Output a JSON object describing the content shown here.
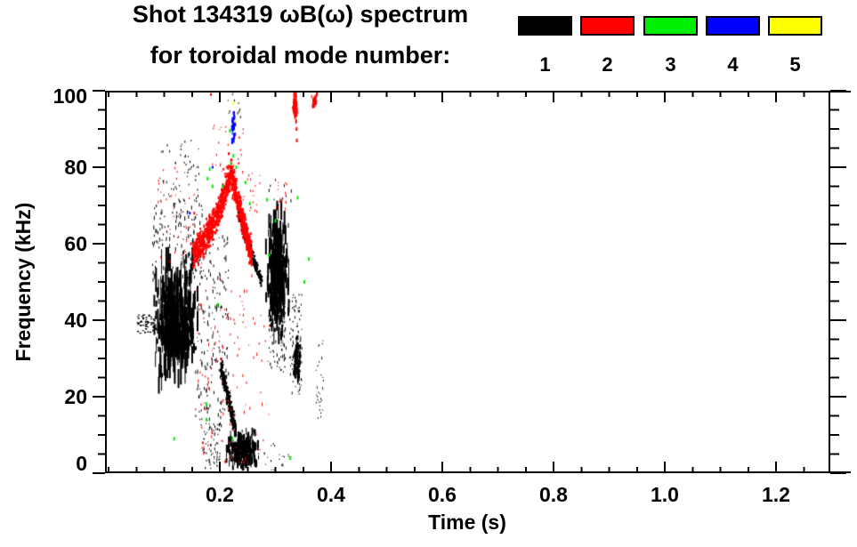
{
  "header": {
    "title_line1": "Shot 134319 ωB(ω) spectrum",
    "title_line2": "for toroidal mode number:"
  },
  "legend": {
    "entries": [
      {
        "label": "1",
        "color": "#000000"
      },
      {
        "label": "2",
        "color": "#ff0000"
      },
      {
        "label": "3",
        "color": "#00ee00"
      },
      {
        "label": "4",
        "color": "#0000ff"
      },
      {
        "label": "5",
        "color": "#ffff00"
      }
    ]
  },
  "axes": {
    "x": {
      "title": "Time (s)",
      "major_ticks": [
        0.2,
        0.4,
        0.6,
        0.8,
        1.0,
        1.2
      ],
      "major_labels": [
        "0.2",
        "0.4",
        "0.6",
        "0.8",
        "1.0",
        "1.2"
      ],
      "minor_step": 0.05
    },
    "y": {
      "title": "Frequency (kHz)",
      "major_ticks": [
        0,
        20,
        40,
        60,
        80,
        100
      ],
      "major_labels": [
        "0",
        "20",
        "40",
        "60",
        "80",
        "100"
      ],
      "minor_step": 5
    }
  },
  "chart_data": {
    "type": "scatter",
    "title": "Shot 134319 ωB(ω) spectrum for toroidal mode number",
    "xlabel": "Time (s)",
    "ylabel": "Frequency (kHz)",
    "xlim": [
      -0.0064,
      1.2976
    ],
    "ylim": [
      0,
      100
    ],
    "grid": false,
    "legend_position": "top-right",
    "background": "#ffffff",
    "axis_color": "#000000",
    "render_seed": 1234567,
    "series": [
      {
        "name": "n=1",
        "color": "#000000",
        "clusters": [
          {
            "k": "v",
            "t": [
              0.077,
              0.16
            ],
            "f": [
              23,
              56
            ],
            "n": 420,
            "l": [
              4,
              30
            ]
          },
          {
            "k": "s",
            "t": [
              0.048,
              0.085
            ],
            "f": [
              36.5,
              41.5
            ],
            "n": 55,
            "d": [
              2,
              2
            ]
          },
          {
            "k": "s",
            "t": [
              0.078,
              0.168
            ],
            "f": [
              50,
              72
            ],
            "n": 160,
            "d": [
              1,
              5
            ]
          },
          {
            "k": "s",
            "t": [
              0.09,
              0.165
            ],
            "f": [
              70,
              88
            ],
            "n": 40,
            "d": [
              1,
              3
            ]
          },
          {
            "k": "s",
            "t": [
              0.128,
              0.162
            ],
            "f": [
              72,
              87
            ],
            "n": 14,
            "d": [
              1,
              3
            ]
          },
          {
            "k": "s",
            "t": [
              0.155,
              0.215
            ],
            "f": [
              12,
              62
            ],
            "n": 180,
            "d": [
              1,
              5
            ]
          },
          {
            "k": "r",
            "p": [
              [
                0.202,
                28
              ],
              [
                0.211,
                22
              ],
              [
                0.221,
                16
              ],
              [
                0.229,
                11
              ]
            ],
            "s": 2.0,
            "n": 260,
            "d": [
              2,
              3
            ]
          },
          {
            "k": "v",
            "t": [
              0.212,
              0.27
            ],
            "f": [
              0.5,
              11
            ],
            "n": 330,
            "l": [
              3,
              10
            ]
          },
          {
            "k": "s",
            "t": [
              0.168,
              0.2
            ],
            "f": [
              1,
              13
            ],
            "n": 70,
            "d": [
              1,
              3
            ]
          },
          {
            "k": "r",
            "p": [
              [
                0.233,
                68
              ],
              [
                0.247,
                62
              ],
              [
                0.261,
                56
              ],
              [
                0.276,
                50
              ]
            ],
            "s": 1.5,
            "n": 220,
            "d": [
              2,
              3
            ]
          },
          {
            "k": "v",
            "t": [
              0.283,
              0.324
            ],
            "f": [
              36,
              70
            ],
            "n": 330,
            "l": [
              4,
              24
            ]
          },
          {
            "k": "s",
            "t": [
              0.286,
              0.32
            ],
            "f": [
              26,
              44
            ],
            "n": 80,
            "d": [
              1,
              4
            ]
          },
          {
            "k": "s",
            "t": [
              0.325,
              0.347
            ],
            "f": [
              20,
              47
            ],
            "n": 80,
            "d": [
              1,
              3
            ]
          },
          {
            "k": "v",
            "t": [
              0.332,
              0.346
            ],
            "f": [
              24,
              36
            ],
            "n": 80,
            "l": [
              3,
              9
            ]
          },
          {
            "k": "s",
            "t": [
              0.372,
              0.386
            ],
            "f": [
              14,
              35
            ],
            "n": 32,
            "d": [
              1,
              2
            ]
          },
          {
            "k": "s",
            "t": [
              0.205,
              0.24
            ],
            "f": [
              93,
              100
            ],
            "n": 14,
            "d": [
              1,
              3
            ]
          },
          {
            "k": "s",
            "t": [
              0.26,
              0.33
            ],
            "f": [
              0,
              8
            ],
            "n": 24,
            "d": [
              1,
              2
            ]
          },
          {
            "k": "s",
            "t": [
              0.285,
              0.335
            ],
            "f": [
              71,
              77
            ],
            "n": 10,
            "d": [
              1,
              4
            ]
          }
        ]
      },
      {
        "name": "n=2",
        "color": "#ff0000",
        "clusters": [
          {
            "k": "r",
            "p": [
              [
                0.152,
                57
              ],
              [
                0.168,
                60
              ],
              [
                0.184,
                64
              ],
              [
                0.2,
                69
              ],
              [
                0.212,
                75
              ],
              [
                0.22,
                78
              ],
              [
                0.229,
                73
              ],
              [
                0.239,
                67
              ],
              [
                0.25,
                61
              ],
              [
                0.258,
                57
              ]
            ],
            "s": 3.0,
            "n": 950,
            "d": [
              2,
              4
            ]
          },
          {
            "k": "s",
            "t": [
              0.185,
              0.245
            ],
            "f": [
              78,
              92
            ],
            "n": 32,
            "d": [
              1,
              3
            ]
          },
          {
            "k": "s",
            "t": [
              0.088,
              0.155
            ],
            "f": [
              55,
              80
            ],
            "n": 38,
            "d": [
              1,
              3
            ]
          },
          {
            "k": "s",
            "t": [
              0.155,
              0.29
            ],
            "f": [
              2,
              52
            ],
            "n": 110,
            "d": [
              1,
              4
            ]
          },
          {
            "k": "v",
            "t": [
              0.3305,
              0.3395
            ],
            "f": [
              92,
              100
            ],
            "n": 45,
            "l": [
              3,
              8
            ]
          },
          {
            "k": "p",
            "p": [
              [
                0.338,
                90
              ],
              [
                0.3385,
                87
              ]
            ],
            "d": [
              2,
              4
            ]
          },
          {
            "k": "v",
            "t": [
              0.365,
              0.376
            ],
            "f": [
              95,
              100
            ],
            "n": 26,
            "l": [
              2,
              6
            ]
          },
          {
            "k": "s",
            "t": [
              0.298,
              0.32
            ],
            "f": [
              69,
              76
            ],
            "n": 16,
            "d": [
              1,
              3
            ]
          },
          {
            "k": "s",
            "t": [
              0.24,
              0.272
            ],
            "f": [
              68,
              80
            ],
            "n": 20,
            "d": [
              1,
              3
            ]
          },
          {
            "k": "p",
            "p": [
              [
                0.184,
                99
              ],
              [
                0.154,
                68
              ],
              [
                0.148,
                60
              ],
              [
                0.21,
                3
              ],
              [
                0.166,
                44
              ],
              [
                0.216,
                83.5
              ]
            ],
            "d": [
              2,
              3
            ]
          }
        ]
      },
      {
        "name": "n=3",
        "color": "#00ee00",
        "clusters": [
          {
            "k": "p",
            "p": [
              [
                0.178,
                77
              ],
              [
                0.182,
                79.5
              ],
              [
                0.187,
                75
              ],
              [
                0.205,
                75
              ],
              [
                0.218,
                89.5
              ],
              [
                0.22,
                81
              ],
              [
                0.2245,
                83
              ],
              [
                0.2295,
                80
              ],
              [
                0.246,
                76
              ],
              [
                0.254,
                70.5
              ],
              [
                0.285,
                71.5
              ],
              [
                0.3,
                66
              ],
              [
                0.34,
                72
              ],
              [
                0.352,
                50
              ],
              [
                0.36,
                56
              ],
              [
                0.288,
                57
              ],
              [
                0.196,
                44
              ],
              [
                0.176,
                18
              ],
              [
                0.176,
                14
              ],
              [
                0.118,
                9
              ],
              [
                0.223,
                9
              ],
              [
                0.327,
                4
              ]
            ],
            "d": [
              2,
              4
            ]
          }
        ]
      },
      {
        "name": "n=4",
        "color": "#0000ff",
        "clusters": [
          {
            "k": "v",
            "t": [
              0.2205,
              0.2285
            ],
            "f": [
              86.5,
              95.2
            ],
            "n": 32,
            "l": [
              3,
              8
            ]
          },
          {
            "k": "p",
            "p": [
              [
                0.146,
                68
              ],
              [
                0.187,
                80
              ]
            ],
            "d": [
              2,
              3
            ]
          }
        ]
      },
      {
        "name": "n=5",
        "color": "#ffff00",
        "clusters": [
          {
            "k": "p",
            "p": [
              [
                0.2195,
                99.8
              ],
              [
                0.224,
                96.7
              ],
              [
                0.227,
                92
              ]
            ],
            "d": [
              2,
              3
            ]
          }
        ]
      }
    ]
  }
}
